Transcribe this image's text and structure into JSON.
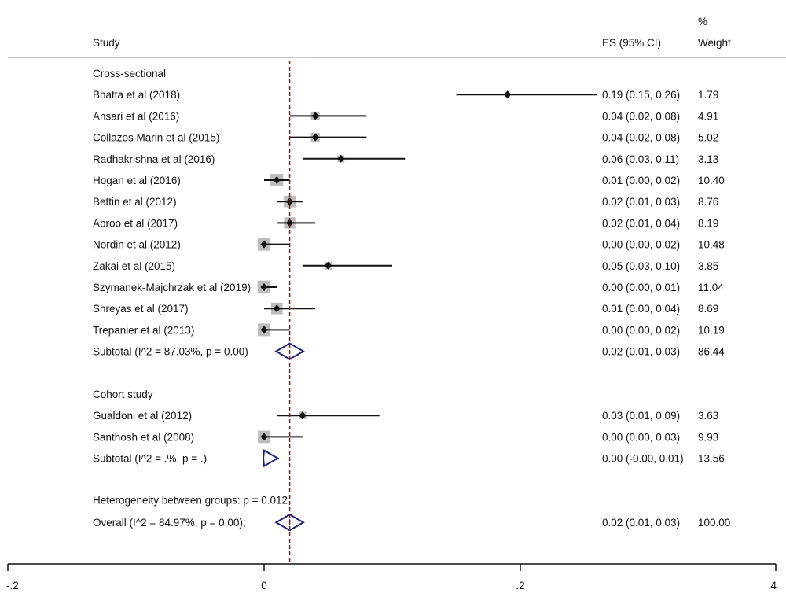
{
  "chart_data": {
    "type": "forest",
    "header": {
      "study": "Study",
      "es": "ES (95% CI)",
      "weight_top": "%",
      "weight": "Weight"
    },
    "groups": [
      {
        "name": "Cross-sectional",
        "studies": [
          {
            "label": "Bhatta et al (2018)",
            "es": 0.19,
            "lo": 0.15,
            "hi": 0.26,
            "ci_text": "0.19 (0.15, 0.26)",
            "weight": "1.79",
            "w": 1.79
          },
          {
            "label": "Ansari et al (2016)",
            "es": 0.04,
            "lo": 0.02,
            "hi": 0.08,
            "ci_text": "0.04 (0.02, 0.08)",
            "weight": "4.91",
            "w": 4.91
          },
          {
            "label": "Collazos Marin et al (2015)",
            "es": 0.04,
            "lo": 0.02,
            "hi": 0.08,
            "ci_text": "0.04 (0.02, 0.08)",
            "weight": "5.02",
            "w": 5.02
          },
          {
            "label": "Radhakrishna et al (2016)",
            "es": 0.06,
            "lo": 0.03,
            "hi": 0.11,
            "ci_text": "0.06 (0.03, 0.11)",
            "weight": "3.13",
            "w": 3.13
          },
          {
            "label": "Hogan et al (2016)",
            "es": 0.01,
            "lo": 0.0,
            "hi": 0.02,
            "ci_text": "0.01 (0.00, 0.02)",
            "weight": "10.40",
            "w": 10.4
          },
          {
            "label": "Bettin et al (2012)",
            "es": 0.02,
            "lo": 0.01,
            "hi": 0.03,
            "ci_text": "0.02 (0.01, 0.03)",
            "weight": "8.76",
            "w": 8.76
          },
          {
            "label": "Abroo et al (2017)",
            "es": 0.02,
            "lo": 0.01,
            "hi": 0.04,
            "ci_text": "0.02 (0.01, 0.04)",
            "weight": "8.19",
            "w": 8.19
          },
          {
            "label": "Nordin et al (2012)",
            "es": 0.0,
            "lo": 0.0,
            "hi": 0.02,
            "ci_text": "0.00 (0.00, 0.02)",
            "weight": "10.48",
            "w": 10.48
          },
          {
            "label": "Zakai et al (2015)",
            "es": 0.05,
            "lo": 0.03,
            "hi": 0.1,
            "ci_text": "0.05 (0.03, 0.10)",
            "weight": "3.85",
            "w": 3.85
          },
          {
            "label": "Szymanek-Majchrzak et al (2019)",
            "es": 0.0,
            "lo": 0.0,
            "hi": 0.01,
            "ci_text": "0.00 (0.00, 0.01)",
            "weight": "11.04",
            "w": 11.04
          },
          {
            "label": "Shreyas et al (2017)",
            "es": 0.01,
            "lo": 0.0,
            "hi": 0.04,
            "ci_text": "0.01 (0.00, 0.04)",
            "weight": "8.69",
            "w": 8.69
          },
          {
            "label": "Trepanier et al (2013)",
            "es": 0.0,
            "lo": 0.0,
            "hi": 0.02,
            "ci_text": "0.00 (0.00, 0.02)",
            "weight": "10.19",
            "w": 10.19
          }
        ],
        "subtotal": {
          "label": "Subtotal  (I^2 = 87.03%, p = 0.00)",
          "es": 0.02,
          "lo": 0.01,
          "hi": 0.03,
          "ci_text": "0.02 (0.01, 0.03)",
          "weight": "86.44"
        }
      },
      {
        "name": "Cohort study",
        "studies": [
          {
            "label": "Gualdoni et al (2012)",
            "es": 0.03,
            "lo": 0.01,
            "hi": 0.09,
            "ci_text": "0.03 (0.01, 0.09)",
            "weight": "3.63",
            "w": 3.63
          },
          {
            "label": "Santhosh et al (2008)",
            "es": 0.0,
            "lo": 0.0,
            "hi": 0.03,
            "ci_text": "0.00 (0.00, 0.03)",
            "weight": "9.93",
            "w": 9.93
          }
        ],
        "subtotal": {
          "label": "Subtotal  (I^2 = .%, p = .)",
          "es": 0.0,
          "lo": -0.0,
          "hi": 0.01,
          "ci_text": "0.00 (-0.00, 0.01)",
          "weight": "13.56"
        }
      }
    ],
    "heterogeneity": "Heterogeneity between groups: p = 0.012",
    "overall": {
      "label": "Overall  (I^2 = 84.97%, p = 0.00);",
      "es": 0.02,
      "lo": 0.01,
      "hi": 0.03,
      "ci_text": "0.02 (0.01, 0.03)",
      "weight": "100.00"
    },
    "xaxis": {
      "ticks": [
        -0.2,
        0,
        0.2,
        0.4
      ],
      "tick_labels": [
        "-.2",
        "0",
        ".2",
        ".4"
      ],
      "range": [
        -0.2,
        0.4
      ]
    },
    "reference_line": 0.02,
    "colors": {
      "box": "#bdbdbd",
      "point": "#111111",
      "ci": "#111111",
      "diamond": "#1a237e",
      "ref_line": "#8b1a1a",
      "separator": "#b0b0b0"
    }
  }
}
